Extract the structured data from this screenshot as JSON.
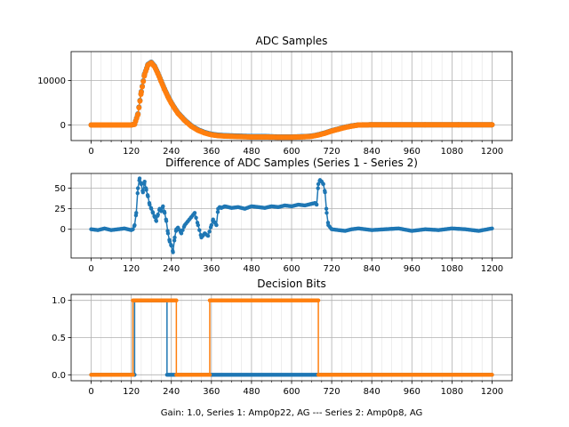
{
  "figure": {
    "caption": "Gain: 1.0, Series 1: Amp0p22, AG --- Series 2: Amp0p8, AG"
  },
  "colors": {
    "series1": "#1f77b4",
    "series2": "#ff7f0e",
    "grid": "#b0b0b0",
    "axis": "#000000"
  },
  "chart_data": [
    {
      "type": "line",
      "title": "ADC Samples",
      "xlabel": "",
      "ylabel": "",
      "xlim": [
        -60,
        1260
      ],
      "ylim": [
        -3500,
        16500
      ],
      "xticks": [
        0,
        120,
        240,
        360,
        480,
        600,
        720,
        840,
        960,
        1080,
        1200
      ],
      "xtick_labels": [
        "0",
        "120",
        "240",
        "360",
        "480",
        "600",
        "720",
        "840",
        "960",
        "1080",
        "1200"
      ],
      "yticks": [
        0,
        10000
      ],
      "ytick_labels": [
        "0",
        "10000"
      ],
      "grid": true,
      "markers": true,
      "series": [
        {
          "x": [
            0,
            120,
            130,
            140,
            150,
            160,
            170,
            180,
            190,
            200,
            210,
            220,
            230,
            240,
            250,
            260,
            280,
            300,
            320,
            340,
            360,
            380,
            400,
            440,
            480,
            520,
            560,
            600,
            640,
            660,
            680,
            700,
            720,
            740,
            760,
            780,
            800,
            840,
            900,
            1000,
            1100,
            1200
          ],
          "y": [
            0,
            0,
            200,
            2500,
            7500,
            11500,
            13600,
            14100,
            13200,
            11600,
            9800,
            8000,
            6400,
            5000,
            3800,
            2700,
            1100,
            -200,
            -1100,
            -1700,
            -2100,
            -2300,
            -2400,
            -2500,
            -2600,
            -2600,
            -2700,
            -2700,
            -2600,
            -2500,
            -2200,
            -1800,
            -1300,
            -900,
            -500,
            -200,
            0,
            50,
            50,
            50,
            50,
            50
          ]
        },
        {
          "x": [
            0,
            120,
            130,
            140,
            150,
            160,
            170,
            180,
            190,
            200,
            210,
            220,
            230,
            240,
            250,
            260,
            280,
            300,
            320,
            340,
            360,
            380,
            400,
            440,
            480,
            520,
            560,
            600,
            640,
            660,
            680,
            700,
            720,
            740,
            760,
            780,
            800,
            840,
            900,
            1000,
            1100,
            1200
          ],
          "y": [
            0,
            0,
            150,
            2400,
            7400,
            11400,
            13500,
            14000,
            13100,
            11500,
            9700,
            7900,
            6300,
            4900,
            3700,
            2600,
            1000,
            -300,
            -1200,
            -1800,
            -2200,
            -2400,
            -2500,
            -2600,
            -2700,
            -2700,
            -2750,
            -2750,
            -2650,
            -2550,
            -2250,
            -1850,
            -1350,
            -950,
            -550,
            -250,
            0,
            50,
            50,
            50,
            50,
            50
          ]
        }
      ]
    },
    {
      "type": "line",
      "title": "Difference of ADC Samples (Series 1 - Series 2)",
      "xlabel": "",
      "ylabel": "",
      "xlim": [
        -60,
        1260
      ],
      "ylim": [
        -35,
        68
      ],
      "xticks": [
        0,
        120,
        240,
        360,
        480,
        600,
        720,
        840,
        960,
        1080,
        1200
      ],
      "xtick_labels": [
        "0",
        "120",
        "240",
        "360",
        "480",
        "600",
        "720",
        "840",
        "960",
        "1080",
        "1200"
      ],
      "yticks": [
        0,
        25,
        50
      ],
      "ytick_labels": [
        "0",
        "25",
        "50"
      ],
      "grid": true,
      "markers": true,
      "series": [
        {
          "x": [
            0,
            20,
            40,
            60,
            80,
            100,
            120,
            125,
            130,
            135,
            140,
            145,
            150,
            155,
            160,
            165,
            170,
            175,
            180,
            185,
            190,
            195,
            200,
            205,
            210,
            215,
            220,
            225,
            230,
            235,
            240,
            245,
            250,
            255,
            260,
            270,
            280,
            290,
            300,
            310,
            320,
            330,
            340,
            350,
            360,
            365,
            370,
            375,
            380,
            385,
            390,
            400,
            420,
            440,
            460,
            480,
            500,
            520,
            540,
            560,
            580,
            600,
            620,
            640,
            660,
            670,
            675,
            680,
            685,
            690,
            695,
            700,
            705,
            710,
            720,
            740,
            760,
            780,
            800,
            840,
            880,
            920,
            960,
            1000,
            1040,
            1080,
            1120,
            1160,
            1200
          ],
          "y": [
            0,
            -1,
            1,
            -1,
            0,
            1,
            -1,
            0,
            5,
            20,
            50,
            62,
            55,
            45,
            58,
            48,
            40,
            30,
            25,
            20,
            15,
            10,
            18,
            25,
            22,
            28,
            20,
            10,
            -5,
            -15,
            -20,
            -28,
            -10,
            0,
            2,
            -5,
            5,
            10,
            15,
            20,
            5,
            -10,
            -5,
            -8,
            5,
            12,
            8,
            5,
            25,
            27,
            26,
            28,
            26,
            27,
            25,
            28,
            27,
            26,
            28,
            27,
            29,
            28,
            30,
            29,
            31,
            32,
            30,
            55,
            60,
            58,
            55,
            45,
            20,
            5,
            0,
            -1,
            -2,
            0,
            1,
            -1,
            0,
            1,
            -2,
            0,
            -1,
            1,
            0,
            -2,
            1
          ]
        }
      ]
    },
    {
      "type": "line",
      "title": "Decision Bits",
      "xlabel": "Gain: 1.0, Series 1: Amp0p22, AG --- Series 2: Amp0p8, AG",
      "ylabel": "",
      "xlim": [
        -60,
        1260
      ],
      "ylim": [
        -0.08,
        1.08
      ],
      "xticks": [
        0,
        120,
        240,
        360,
        480,
        600,
        720,
        840,
        960,
        1080,
        1200
      ],
      "xtick_labels": [
        "0",
        "120",
        "240",
        "360",
        "480",
        "600",
        "720",
        "840",
        "960",
        "1080",
        "1200"
      ],
      "yticks": [
        0,
        0.5,
        1.0
      ],
      "ytick_labels": [
        "0.0",
        "0.5",
        "1.0"
      ],
      "grid": true,
      "markers": true,
      "series": [
        {
          "x": [
            0,
            130,
            130,
            227,
            227,
            675,
            675,
            1200
          ],
          "y": [
            0,
            0,
            1,
            1,
            0,
            0,
            0,
            0
          ]
        },
        {
          "x": [
            0,
            125,
            125,
            255,
            255,
            355,
            355,
            680,
            680,
            1200
          ],
          "y": [
            0,
            0,
            1,
            1,
            0,
            0,
            1,
            1,
            0,
            0
          ]
        }
      ]
    }
  ]
}
